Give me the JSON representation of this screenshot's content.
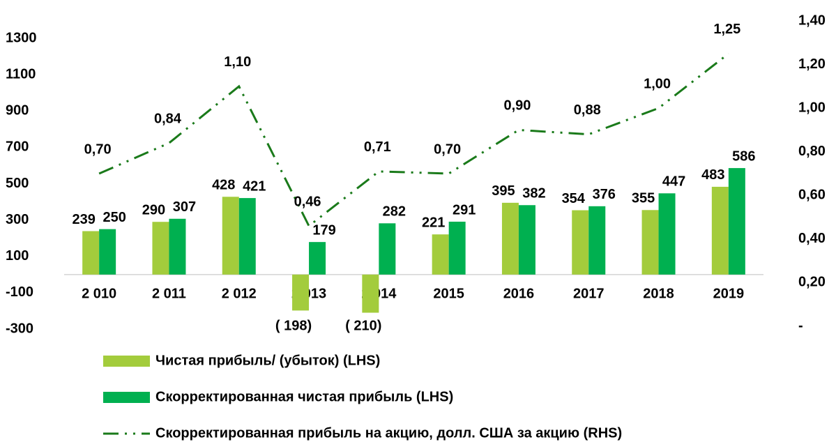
{
  "chart_data": {
    "type": "bar",
    "categories": [
      "2 010",
      "2 011",
      "2 012",
      "2 013",
      "2 014",
      "2015",
      "2016",
      "2017",
      "2018",
      "2019"
    ],
    "series": [
      {
        "name": "Чистая прибыль/ (убыток) (LHS)",
        "type": "bar",
        "color": "#a3cc3c",
        "values": [
          239,
          290,
          428,
          -198,
          -210,
          221,
          395,
          354,
          355,
          483
        ],
        "value_labels": [
          "239",
          "290",
          "428",
          "( 198)",
          "( 210)",
          "221",
          "395",
          "354",
          "355",
          "483"
        ]
      },
      {
        "name": "Скорректированная чистая прибыль (LHS)",
        "type": "bar",
        "color": "#00b050",
        "values": [
          250,
          307,
          421,
          179,
          282,
          291,
          382,
          376,
          447,
          586
        ]
      },
      {
        "name": "Скорректированная прибыль на акцию, долл. США за акцию (RHS)",
        "type": "line",
        "axis": "y2",
        "color": "#1a7a1a",
        "values": [
          0.7,
          0.84,
          1.1,
          0.46,
          0.71,
          0.7,
          0.9,
          0.88,
          1.0,
          1.25
        ],
        "value_labels": [
          "0,70",
          "0,84",
          "1,10",
          "0,46",
          "0,71",
          "0,70",
          "0,90",
          "0,88",
          "1,00",
          "1,25"
        ]
      }
    ],
    "ylim": [
      -300,
      1300
    ],
    "yticks": [
      1300,
      1100,
      900,
      700,
      500,
      300,
      100,
      -100,
      -300
    ],
    "y2lim": [
      0,
      1.4
    ],
    "y2ticks": [
      {
        "value": 1.4,
        "label": "1,40"
      },
      {
        "value": 1.2,
        "label": "1,20"
      },
      {
        "value": 1.0,
        "label": "1,00"
      },
      {
        "value": 0.8,
        "label": "0,80"
      },
      {
        "value": 0.6,
        "label": "0,60"
      },
      {
        "value": 0.4,
        "label": "0,40"
      },
      {
        "value": 0.2,
        "label": "0,20"
      },
      {
        "value": 0,
        "label": "-"
      }
    ]
  }
}
